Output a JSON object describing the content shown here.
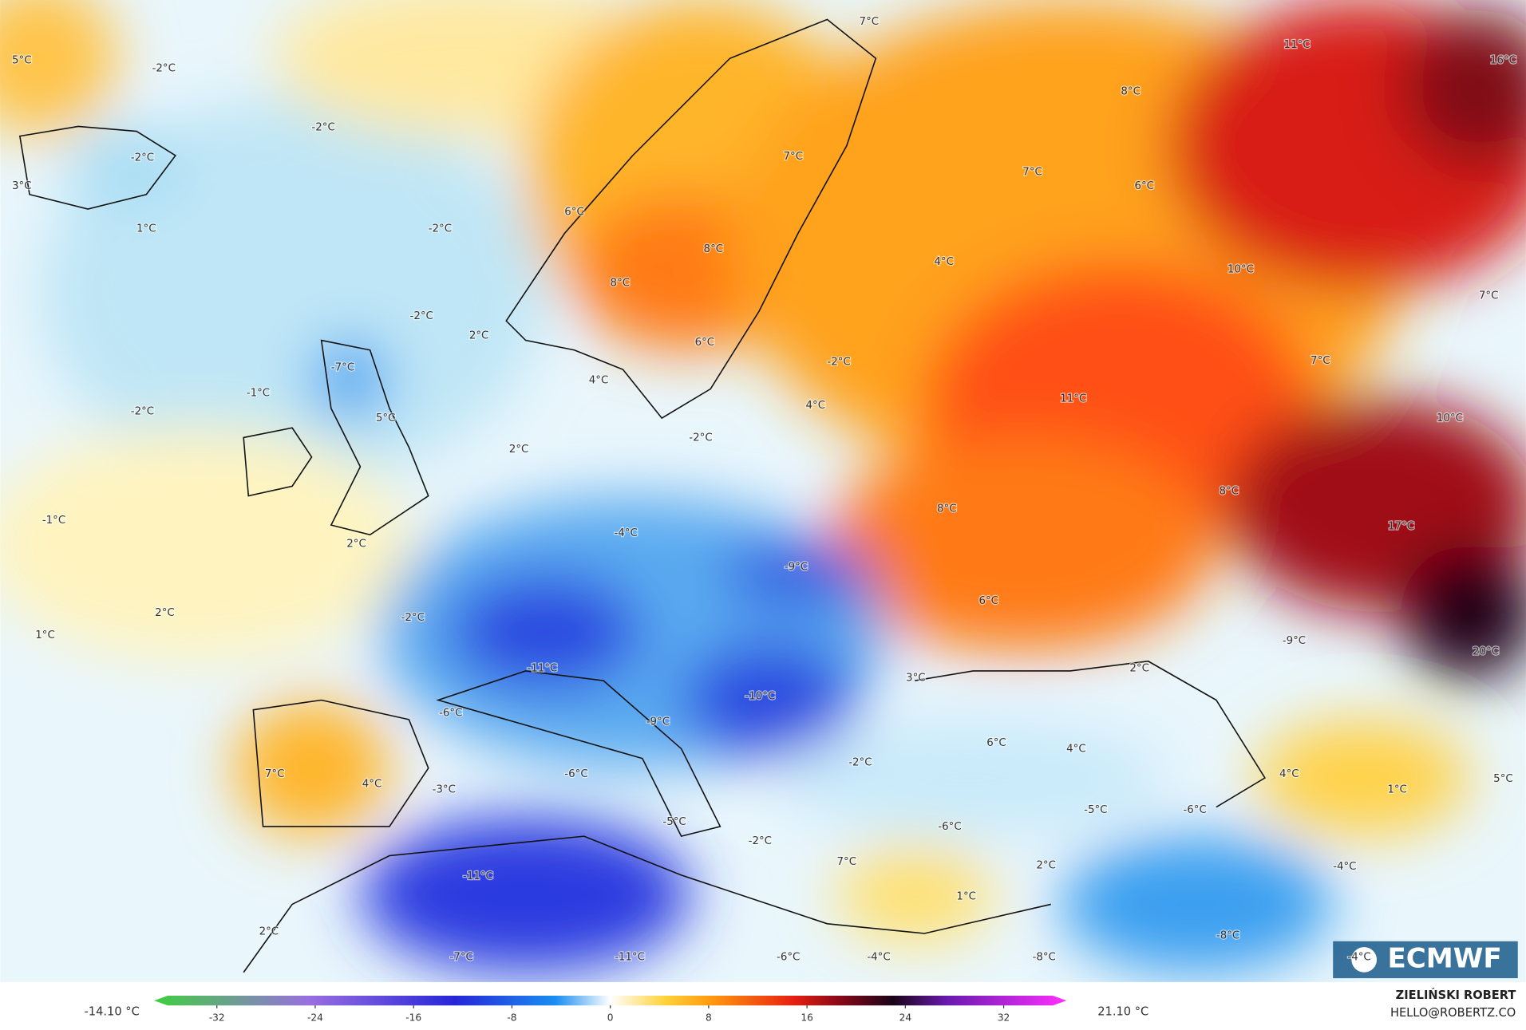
{
  "map": {
    "labels": [
      "5°C",
      "-2°C",
      "7°C",
      "11°C",
      "16°C",
      "-2°C",
      "-2°C",
      "8°C",
      "3°C",
      "7°C",
      "7°C",
      "6°C",
      "1°C",
      "-2°C",
      "6°C",
      "8°C",
      "4°C",
      "10°C",
      "8°C",
      "7°C",
      "-2°C",
      "2°C",
      "6°C",
      "-2°C",
      "-7°C",
      "7°C",
      "4°C",
      "-1°C",
      "11°C",
      "-2°C",
      "4°C",
      "5°C",
      "10°C",
      "-2°C",
      "2°C",
      "8°C",
      "-1°C",
      "8°C",
      "17°C",
      "-4°C",
      "2°C",
      "-9°C",
      "6°C",
      "2°C",
      "-2°C",
      "1°C",
      "-9°C",
      "20°C",
      "-11°C",
      "2°C",
      "3°C",
      "-10°C",
      "-6°C",
      "-9°C",
      "6°C",
      "4°C",
      "-2°C",
      "7°C",
      "4°C",
      "4°C",
      "5°C",
      "-3°C",
      "-6°C",
      "1°C",
      "-5°C",
      "-6°C",
      "-6°C",
      "-5°C",
      "-2°C",
      "7°C",
      "2°C",
      "-4°C",
      "-11°C",
      "1°C",
      "-8°C",
      "2°C",
      "-7°C",
      "-11°C",
      "-6°C",
      "-4°C",
      "-8°C",
      "-4°C"
    ]
  },
  "colorbar": {
    "min_label": "-14.10 °C",
    "max_label": "21.10 °C",
    "lim": [
      -36,
      36
    ],
    "ticks": [
      -32,
      -24,
      -16,
      -8,
      0,
      8,
      16,
      24,
      32
    ]
  },
  "logo": "ECMWF",
  "credit": {
    "name": "ZIELIŃSKI ROBERT",
    "email": "HELLO@ROBERTZ.CO"
  }
}
